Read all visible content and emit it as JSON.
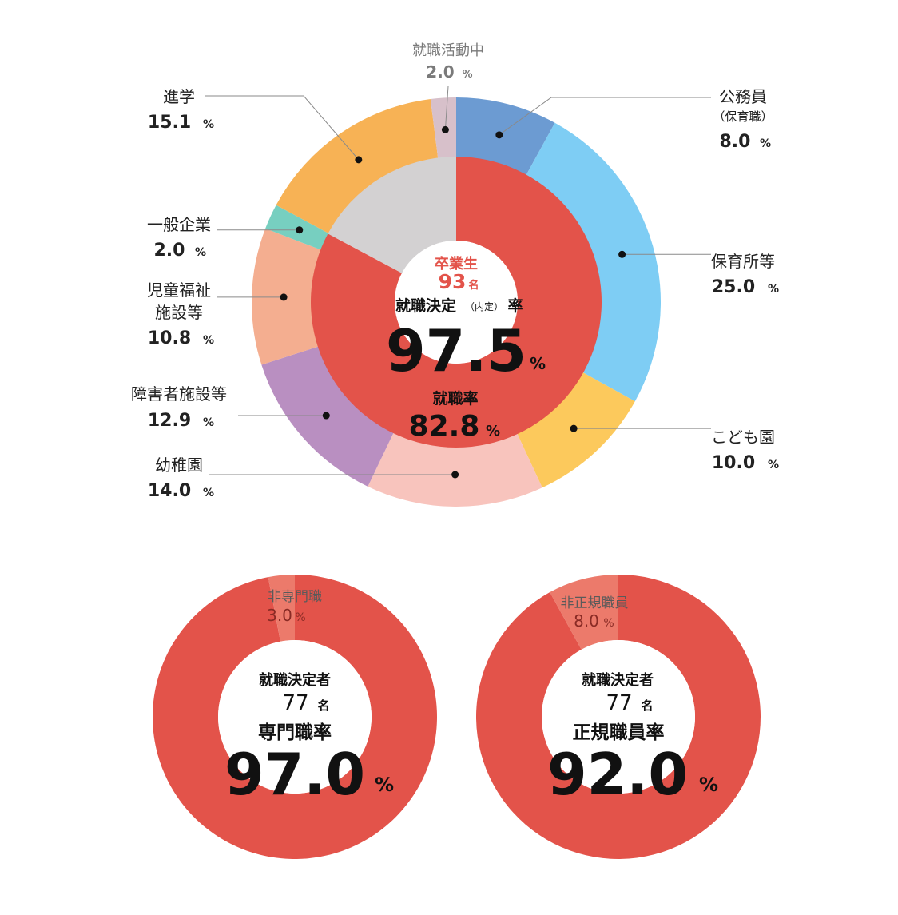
{
  "chart_data": [
    {
      "type": "pie",
      "variant": "double-donut",
      "outer": {
        "slices": [
          {
            "label": "公務員",
            "sublabel": "（保育職）",
            "value": 8.0,
            "unit": "%",
            "color": "#6c9bd2"
          },
          {
            "label": "保育所等",
            "value": 25.0,
            "unit": "%",
            "color": "#7ecdf4"
          },
          {
            "label": "こども園",
            "value": 10.0,
            "unit": "%",
            "color": "#fcc95c"
          },
          {
            "label": "幼稚園",
            "value": 14.0,
            "unit": "%",
            "color": "#f8c4bd"
          },
          {
            "label": "障害者施設等",
            "value": 12.9,
            "unit": "%",
            "color": "#b98fc1"
          },
          {
            "label": "児童福祉施設等",
            "label_lines": [
              "児童福祉",
              "施設等"
            ],
            "value": 10.8,
            "unit": "%",
            "color": "#f4ae90"
          },
          {
            "label": "一般企業",
            "value": 2.0,
            "unit": "%",
            "color": "#77cfc0"
          },
          {
            "label": "進学",
            "value": 15.1,
            "unit": "%",
            "color": "#f7b255"
          },
          {
            "label": "就職活動中",
            "value": 2.0,
            "unit": "%",
            "color": "#d7c0ca"
          }
        ]
      },
      "inner": {
        "slices": [
          {
            "value": 82.8,
            "color": "#e3534a"
          },
          {
            "value": 17.2,
            "color": "#d3d1d2"
          }
        ]
      },
      "center": {
        "graduates_label": "卒業生",
        "graduates_count": "93",
        "graduates_unit": "名",
        "decision_label": "就職決定",
        "decision_paren": "（内定）",
        "decision_suffix": "率",
        "decision_rate": "97.5",
        "decision_rate_unit": "%",
        "employment_label": "就職率",
        "employment_rate": "82.8",
        "employment_rate_unit": "%"
      }
    },
    {
      "type": "pie",
      "variant": "donut",
      "slices": [
        {
          "label": "専門職",
          "value": 97.0,
          "color": "#e3534a"
        },
        {
          "label": "非専門職",
          "value": 3.0,
          "unit": "%",
          "color": "#ec7a6b"
        }
      ],
      "center": {
        "count_label": "就職決定者",
        "count": "77",
        "count_unit": "名",
        "rate_label": "専門職率",
        "rate": "97.0",
        "rate_unit": "%"
      }
    },
    {
      "type": "pie",
      "variant": "donut",
      "slices": [
        {
          "label": "正規職員",
          "value": 92.0,
          "color": "#e3534a"
        },
        {
          "label": "非正規職員",
          "value": 8.0,
          "unit": "%",
          "color": "#ec7a6b"
        }
      ],
      "center": {
        "count_label": "就職決定者",
        "count": "77",
        "count_unit": "名",
        "rate_label": "正規職員率",
        "rate": "92.0",
        "rate_unit": "%"
      }
    }
  ]
}
